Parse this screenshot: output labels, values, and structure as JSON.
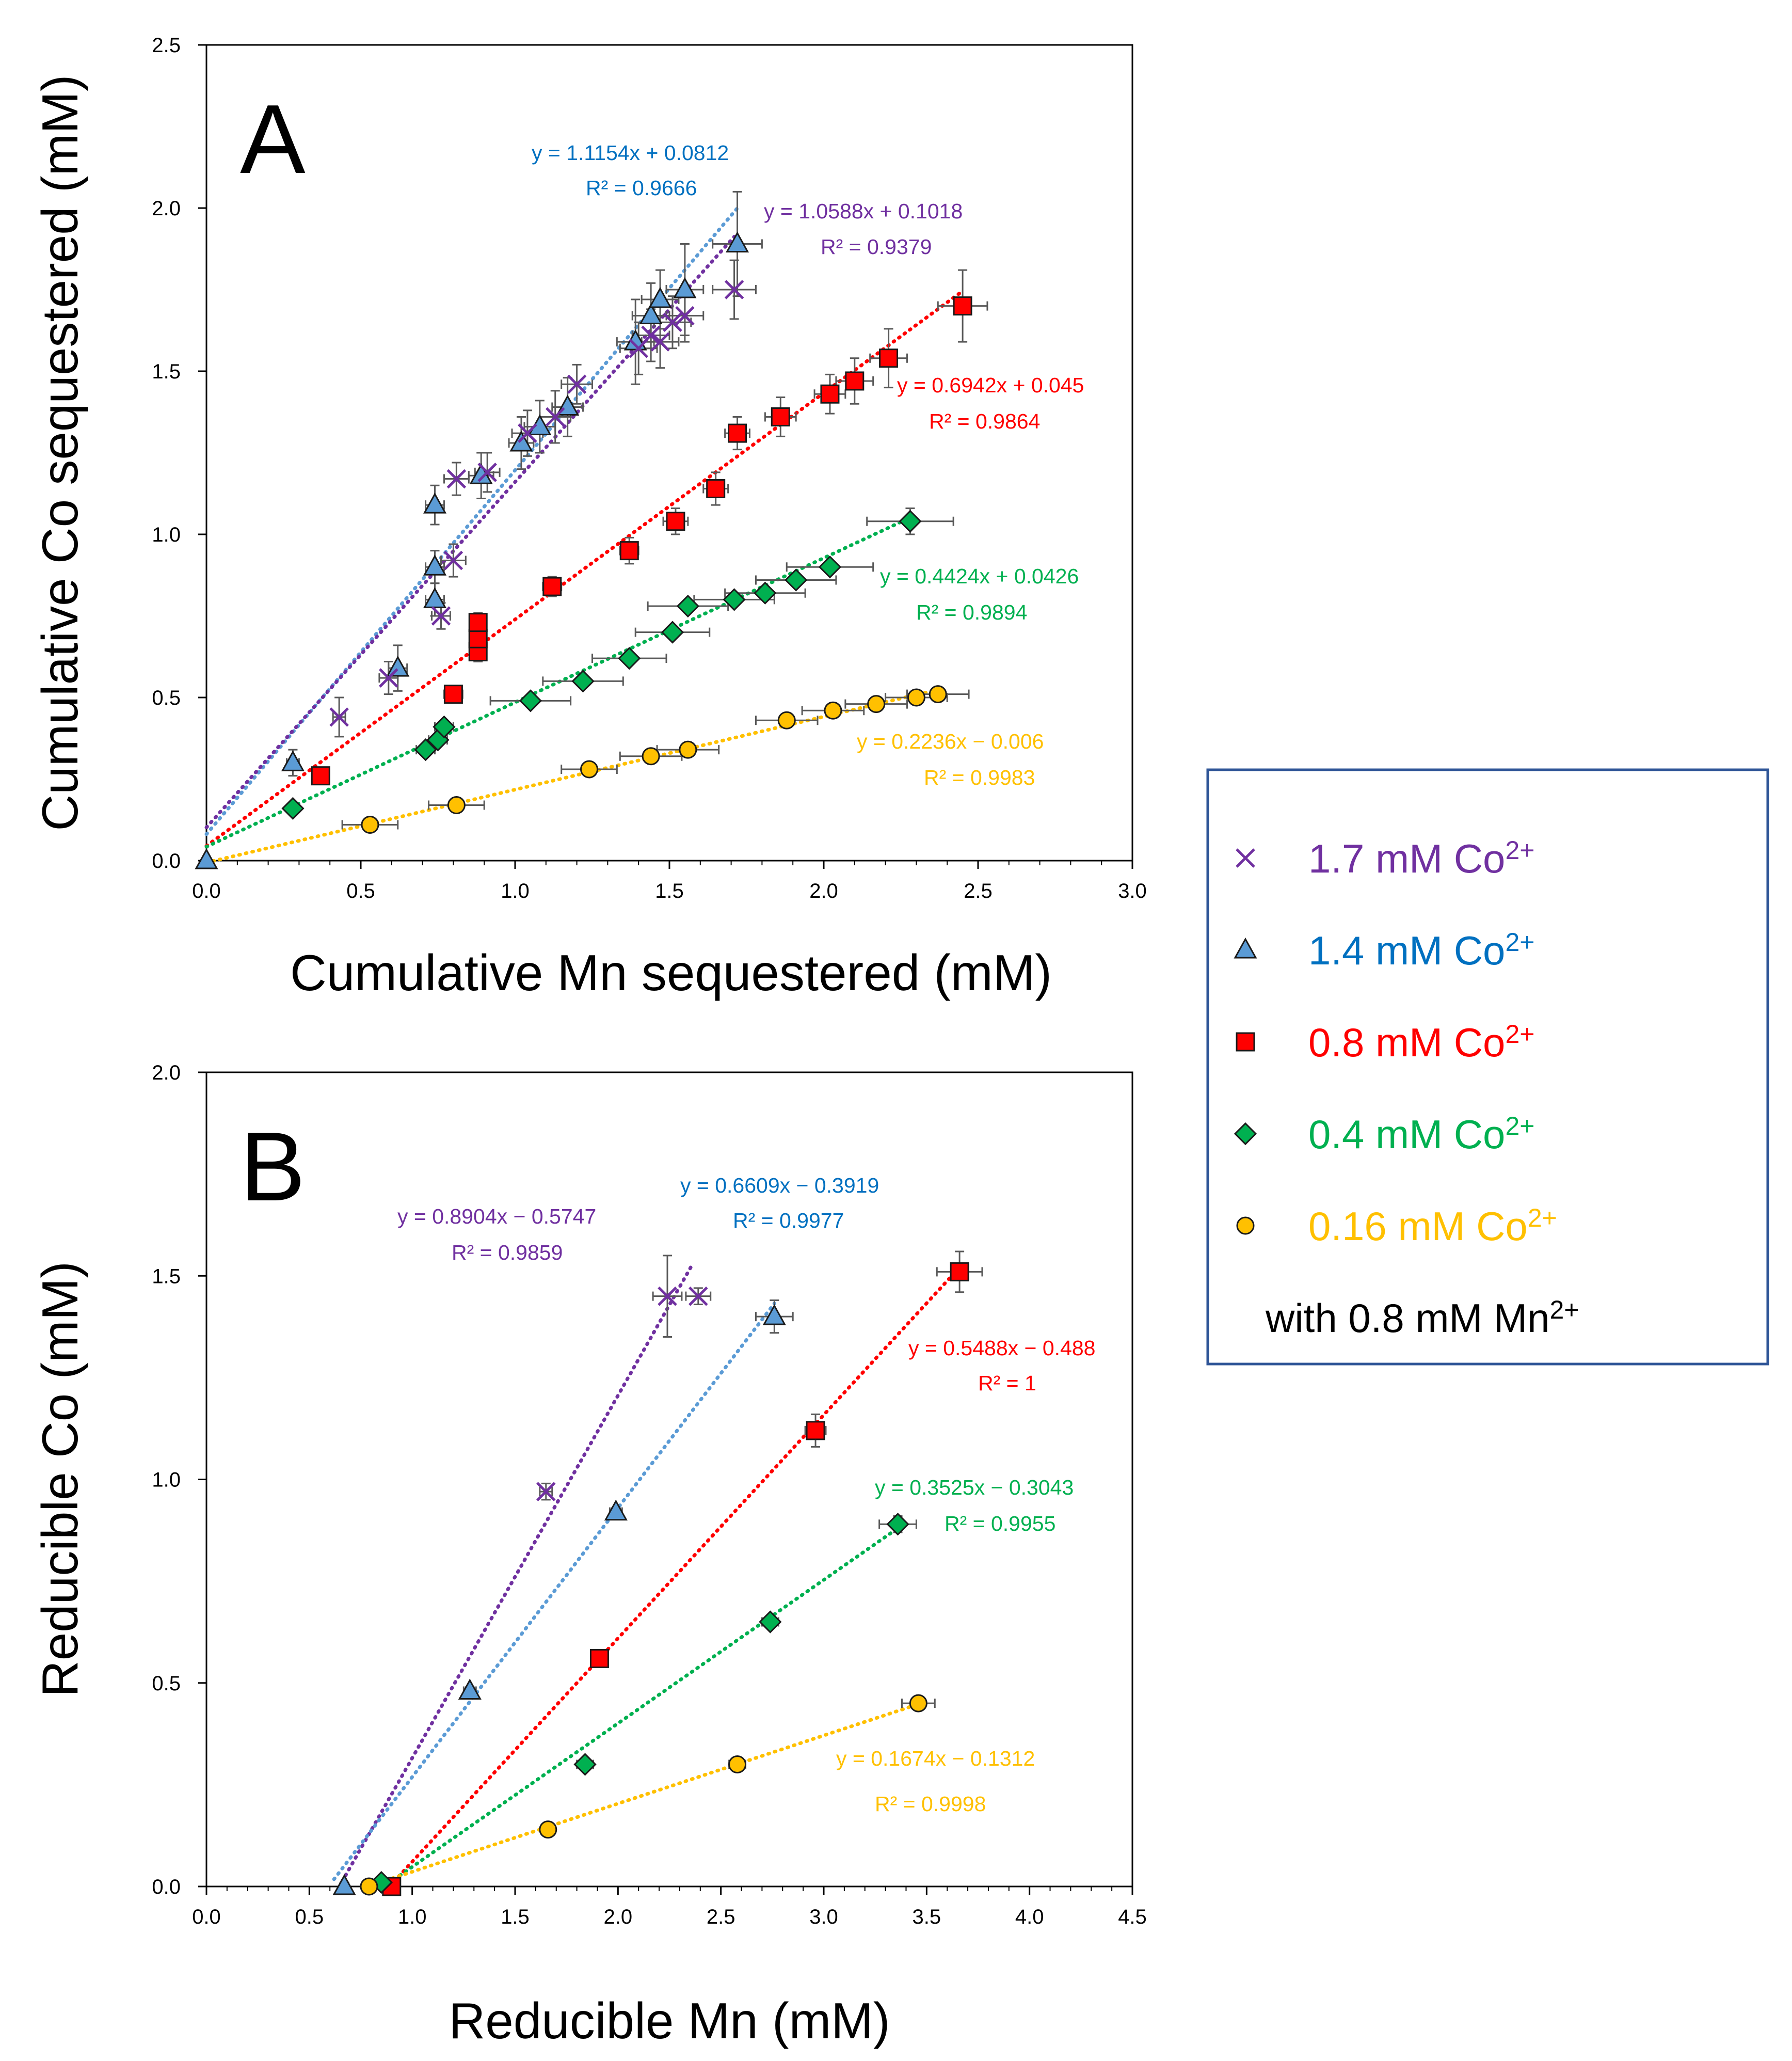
{
  "colors": {
    "purple": "#7030A0",
    "blue": "#5B9BD5",
    "blue_text": "#0070C0",
    "red": "#FF0000",
    "green": "#00B050",
    "yellow": "#FFC000",
    "legend_border": "#2F5597"
  },
  "legend": {
    "items": [
      {
        "label": "1.7 mM Co",
        "sup": "2+",
        "series": "s17"
      },
      {
        "label": "1.4 mM Co",
        "sup": "2+",
        "series": "s14"
      },
      {
        "label": "0.8 mM Co",
        "sup": "2+",
        "series": "s08"
      },
      {
        "label": "0.4 mM Co",
        "sup": "2+",
        "series": "s04"
      },
      {
        "label": "0.16 mM Co",
        "sup": "2+",
        "series": "s016"
      }
    ],
    "footer": "with 0.8 mM Mn",
    "footer_sup": "2+"
  },
  "chart_data": [
    {
      "id": "A",
      "type": "scatter",
      "panel_label": "A",
      "xlabel": "Cumulative Mn sequestered (mM)",
      "ylabel": "Cumulative Co sequestered (mM)",
      "xlim": [
        0,
        3.0
      ],
      "ylim": [
        0,
        2.5
      ],
      "xticks": [
        "0.0",
        "0.5",
        "1.0",
        "1.5",
        "2.0",
        "2.5",
        "3.0"
      ],
      "yticks": [
        "0.0",
        "0.5",
        "1.0",
        "1.5",
        "2.0",
        "2.5"
      ],
      "series": [
        {
          "key": "s14",
          "name": "1.4 mM Co2+",
          "marker": "triangle",
          "color": "blue",
          "text_color": "blue_text",
          "points": [
            [
              0,
              0,
              0,
              0
            ],
            [
              0.28,
              0.3,
              0.02,
              0.04
            ],
            [
              0.62,
              0.59,
              0.03,
              0.07
            ],
            [
              0.74,
              0.8,
              0.03,
              0.05
            ],
            [
              0.74,
              0.9,
              0.03,
              0.05
            ],
            [
              0.74,
              1.09,
              0.03,
              0.06
            ],
            [
              0.89,
              1.18,
              0.04,
              0.07
            ],
            [
              1.02,
              1.28,
              0.04,
              0.08
            ],
            [
              1.08,
              1.33,
              0.05,
              0.08
            ],
            [
              1.17,
              1.39,
              0.05,
              0.09
            ],
            [
              1.39,
              1.59,
              0.06,
              0.13
            ],
            [
              1.44,
              1.67,
              0.06,
              0.1
            ],
            [
              1.47,
              1.72,
              0.06,
              0.09
            ],
            [
              1.55,
              1.75,
              0.06,
              0.14
            ],
            [
              1.72,
              1.89,
              0.08,
              0.16
            ]
          ],
          "trend": {
            "slope": 1.1154,
            "intercept": 0.0812,
            "x_range": [
              0,
              1.72
            ],
            "equation": "y = 1.1154x + 0.0812",
            "r2": "R² = 0.9666"
          }
        },
        {
          "key": "s17",
          "name": "1.7 mM Co2+",
          "marker": "x",
          "color": "purple",
          "text_color": "purple",
          "points": [
            [
              0.43,
              0.44,
              0.02,
              0.06
            ],
            [
              0.59,
              0.56,
              0.03,
              0.05
            ],
            [
              0.76,
              0.75,
              0.03,
              0.04
            ],
            [
              0.8,
              0.92,
              0.04,
              0.05
            ],
            [
              0.81,
              1.17,
              0.04,
              0.05
            ],
            [
              0.91,
              1.19,
              0.04,
              0.06
            ],
            [
              1.04,
              1.31,
              0.05,
              0.07
            ],
            [
              1.13,
              1.36,
              0.05,
              0.08
            ],
            [
              1.2,
              1.46,
              0.05,
              0.06
            ],
            [
              1.4,
              1.57,
              0.06,
              0.08
            ],
            [
              1.44,
              1.61,
              0.06,
              0.08
            ],
            [
              1.47,
              1.59,
              0.06,
              0.08
            ],
            [
              1.51,
              1.65,
              0.06,
              0.08
            ],
            [
              1.55,
              1.67,
              0.06,
              0.08
            ],
            [
              1.71,
              1.75,
              0.07,
              0.09
            ]
          ],
          "trend": {
            "slope": 1.0588,
            "intercept": 0.1018,
            "x_range": [
              0,
              1.71
            ],
            "equation": "y = 1.0588x + 0.1018",
            "r2": "R² = 0.9379"
          }
        },
        {
          "key": "s08",
          "name": "0.8 mM Co2+",
          "marker": "square",
          "color": "red",
          "text_color": "red",
          "points": [
            [
              0.37,
              0.26,
              0.02,
              0.02
            ],
            [
              0.8,
              0.51,
              0.03,
              0.02
            ],
            [
              0.88,
              0.64,
              0.02,
              0.03
            ],
            [
              0.88,
              0.68,
              0.02,
              0.03
            ],
            [
              0.88,
              0.73,
              0.02,
              0.03
            ],
            [
              1.12,
              0.84,
              0.03,
              0.03
            ],
            [
              1.37,
              0.95,
              0.03,
              0.04
            ],
            [
              1.52,
              1.04,
              0.04,
              0.04
            ],
            [
              1.65,
              1.14,
              0.04,
              0.05
            ],
            [
              1.72,
              1.31,
              0.04,
              0.05
            ],
            [
              1.86,
              1.36,
              0.05,
              0.06
            ],
            [
              2.02,
              1.43,
              0.05,
              0.06
            ],
            [
              2.1,
              1.47,
              0.06,
              0.07
            ],
            [
              2.21,
              1.54,
              0.06,
              0.09
            ],
            [
              2.45,
              1.7,
              0.08,
              0.11
            ]
          ],
          "trend": {
            "slope": 0.6942,
            "intercept": 0.045,
            "x_range": [
              0,
              2.45
            ],
            "equation": "y = 0.6942x + 0.045",
            "r2": "R² = 0.9864"
          }
        },
        {
          "key": "s04",
          "name": "0.4 mM Co2+",
          "marker": "diamond",
          "color": "green",
          "text_color": "green",
          "points": [
            [
              0.28,
              0.16,
              0.02,
              0.01
            ],
            [
              0.71,
              0.34,
              0.03,
              0.01
            ],
            [
              0.75,
              0.37,
              0.03,
              0.01
            ],
            [
              0.77,
              0.41,
              0.03,
              0.01
            ],
            [
              1.05,
              0.49,
              0.13,
              0.01
            ],
            [
              1.22,
              0.55,
              0.13,
              0.01
            ],
            [
              1.37,
              0.62,
              0.12,
              0.01
            ],
            [
              1.51,
              0.7,
              0.12,
              0.01
            ],
            [
              1.56,
              0.78,
              0.13,
              0.01
            ],
            [
              1.71,
              0.8,
              0.13,
              0.01
            ],
            [
              1.81,
              0.82,
              0.13,
              0.01
            ],
            [
              1.91,
              0.86,
              0.13,
              0.01
            ],
            [
              2.02,
              0.9,
              0.14,
              0.01
            ],
            [
              2.28,
              1.04,
              0.14,
              0.04
            ]
          ],
          "trend": {
            "slope": 0.4424,
            "intercept": 0.0426,
            "x_range": [
              0,
              2.28
            ],
            "equation": "y = 0.4424x + 0.0426",
            "r2": "R² = 0.9894"
          }
        },
        {
          "key": "s016",
          "name": "0.16 mM Co2+",
          "marker": "circle",
          "color": "yellow",
          "text_color": "yellow",
          "points": [
            [
              0.53,
              0.11,
              0.09,
              0.005
            ],
            [
              0.81,
              0.17,
              0.09,
              0.005
            ],
            [
              1.24,
              0.28,
              0.09,
              0.005
            ],
            [
              1.44,
              0.32,
              0.1,
              0.005
            ],
            [
              1.56,
              0.34,
              0.1,
              0.005
            ],
            [
              1.88,
              0.43,
              0.1,
              0.005
            ],
            [
              2.03,
              0.46,
              0.1,
              0.005
            ],
            [
              2.17,
              0.48,
              0.1,
              0.005
            ],
            [
              2.3,
              0.5,
              0.1,
              0.005
            ],
            [
              2.37,
              0.51,
              0.1,
              0.005
            ]
          ],
          "trend": {
            "slope": 0.2236,
            "intercept": -0.006,
            "x_range": [
              0,
              2.37
            ],
            "equation": "y = 0.2236x − 0.006",
            "r2": "R² = 0.9983"
          }
        }
      ]
    },
    {
      "id": "B",
      "type": "scatter",
      "panel_label": "B",
      "xlabel": "Reducible Mn (mM)",
      "ylabel": "Reducible Co (mM)",
      "xlim": [
        0,
        4.5
      ],
      "ylim": [
        0,
        2.0
      ],
      "xticks": [
        "0.0",
        "0.5",
        "1.0",
        "1.5",
        "2.0",
        "2.5",
        "3.0",
        "3.5",
        "4.0",
        "4.5"
      ],
      "yticks": [
        "0.0",
        "0.5",
        "1.0",
        "1.5",
        "2.0"
      ],
      "series": [
        {
          "key": "s17",
          "name": "1.7 mM Co2+",
          "marker": "x",
          "color": "purple",
          "text_color": "purple",
          "points": [
            [
              1.65,
              0.97,
              0.03,
              0.02
            ],
            [
              2.24,
              1.45,
              0.07,
              0.1
            ],
            [
              2.39,
              1.45,
              0.06,
              0.02
            ]
          ],
          "trend": {
            "slope": 0.8904,
            "intercept": -0.5747,
            "x_range": [
              0.66,
              2.36
            ],
            "equation": "y = 0.8904x − 0.5747",
            "r2": "R² = 0.9859"
          }
        },
        {
          "key": "s14",
          "name": "1.4 mM Co2+",
          "marker": "triangle",
          "color": "blue",
          "text_color": "blue_text",
          "points": [
            [
              0.67,
              0.0,
              0.02,
              0.01
            ],
            [
              1.28,
              0.48,
              0.03,
              0.01
            ],
            [
              1.99,
              0.92,
              0.03,
              0.01
            ],
            [
              2.76,
              1.4,
              0.09,
              0.04
            ]
          ],
          "trend": {
            "slope": 0.6609,
            "intercept": -0.3919,
            "x_range": [
              0.62,
              2.76
            ],
            "equation": "y = 0.6609x − 0.3919",
            "r2": "R² = 0.9977"
          }
        },
        {
          "key": "s08",
          "name": "0.8 mM Co2+",
          "marker": "square",
          "color": "red",
          "text_color": "red",
          "points": [
            [
              0.9,
              0.0,
              0.02,
              0.005
            ],
            [
              1.91,
              0.56,
              0.03,
              0.01
            ],
            [
              2.96,
              1.12,
              0.05,
              0.04
            ],
            [
              3.66,
              1.51,
              0.11,
              0.05
            ]
          ],
          "trend": {
            "slope": 0.5488,
            "intercept": -0.488,
            "x_range": [
              0.89,
              3.66
            ],
            "equation": "y = 0.5488x − 0.488",
            "r2": "R² = 1"
          }
        },
        {
          "key": "s04",
          "name": "0.4 mM Co2+",
          "marker": "diamond",
          "color": "green",
          "text_color": "green",
          "points": [
            [
              0.85,
              0.01,
              0.02,
              0.005
            ],
            [
              1.84,
              0.3,
              0.04,
              0.01
            ],
            [
              2.74,
              0.65,
              0.04,
              0.01
            ],
            [
              3.36,
              0.89,
              0.09,
              0.02
            ]
          ],
          "trend": {
            "slope": 0.3525,
            "intercept": -0.3043,
            "x_range": [
              0.86,
              3.36
            ],
            "equation": "y = 0.3525x − 0.3043",
            "r2": "R² = 0.9955"
          }
        },
        {
          "key": "s016",
          "name": "0.16 mM Co2+",
          "marker": "circle",
          "color": "yellow",
          "text_color": "yellow",
          "points": [
            [
              0.79,
              0.0,
              0.02,
              0.005
            ],
            [
              1.66,
              0.14,
              0.03,
              0.005
            ],
            [
              2.58,
              0.3,
              0.04,
              0.005
            ],
            [
              3.46,
              0.45,
              0.08,
              0.01
            ]
          ],
          "trend": {
            "slope": 0.1674,
            "intercept": -0.1312,
            "x_range": [
              0.78,
              3.46
            ],
            "equation": "y = 0.1674x − 0.1312",
            "r2": "R² = 0.9998"
          }
        }
      ]
    }
  ]
}
